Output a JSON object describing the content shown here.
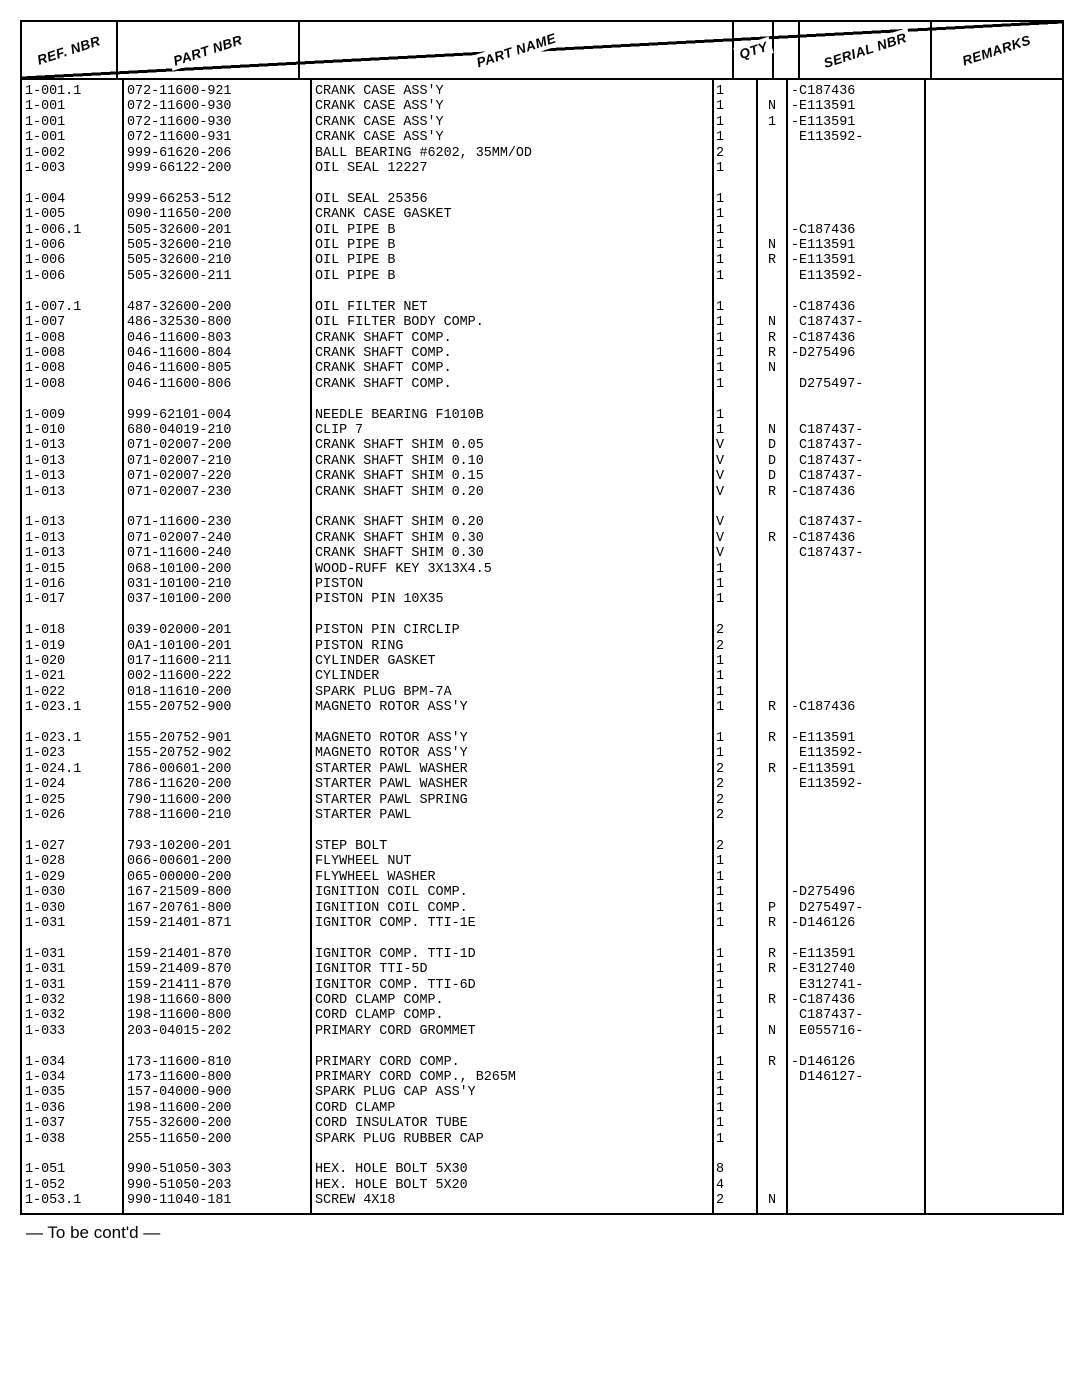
{
  "headers": {
    "ref": "REF. NBR",
    "part": "PART NBR",
    "name": "PART NAME",
    "qty": "QTY",
    "c1": "",
    "serial": "SERIAL NBR",
    "remarks": "REMARKS"
  },
  "footer": "— To be cont'd —",
  "rows": [
    {
      "ref": "1-001.1",
      "part": "072-11600-921",
      "name": "CRANK CASE ASS'Y",
      "qty": "1",
      "c": "",
      "serial": "-C187436",
      "rem": ""
    },
    {
      "ref": "1-001",
      "part": "072-11600-930",
      "name": "CRANK CASE ASS'Y",
      "qty": "1",
      "c": "N",
      "serial": "-E113591",
      "rem": ""
    },
    {
      "ref": "1-001",
      "part": "072-11600-930",
      "name": "CRANK CASE ASS'Y",
      "qty": "1",
      "c": "1",
      "serial": "-E113591",
      "rem": ""
    },
    {
      "ref": "1-001",
      "part": "072-11600-931",
      "name": "CRANK CASE ASS'Y",
      "qty": "1",
      "c": "",
      "serial": " E113592-",
      "rem": ""
    },
    {
      "ref": "1-002",
      "part": "999-61620-206",
      "name": "BALL BEARING #6202, 35MM/OD",
      "qty": "2",
      "c": "",
      "serial": "",
      "rem": ""
    },
    {
      "ref": "1-003",
      "part": "999-66122-200",
      "name": "OIL SEAL 12227",
      "qty": "1",
      "c": "",
      "serial": "",
      "rem": ""
    },
    {
      "blank": true
    },
    {
      "ref": "1-004",
      "part": "999-66253-512",
      "name": "OIL SEAL 25356",
      "qty": "1",
      "c": "",
      "serial": "",
      "rem": ""
    },
    {
      "ref": "1-005",
      "part": "090-11650-200",
      "name": "CRANK CASE GASKET",
      "qty": "1",
      "c": "",
      "serial": "",
      "rem": ""
    },
    {
      "ref": "1-006.1",
      "part": "505-32600-201",
      "name": "OIL PIPE B",
      "qty": "1",
      "c": "",
      "serial": "-C187436",
      "rem": ""
    },
    {
      "ref": "1-006",
      "part": "505-32600-210",
      "name": "OIL PIPE B",
      "qty": "1",
      "c": "N",
      "serial": "-E113591",
      "rem": ""
    },
    {
      "ref": "1-006",
      "part": "505-32600-210",
      "name": "OIL PIPE B",
      "qty": "1",
      "c": "R",
      "serial": "-E113591",
      "rem": ""
    },
    {
      "ref": "1-006",
      "part": "505-32600-211",
      "name": "OIL PIPE B",
      "qty": "1",
      "c": "",
      "serial": " E113592-",
      "rem": ""
    },
    {
      "blank": true
    },
    {
      "ref": "1-007.1",
      "part": "487-32600-200",
      "name": "OIL FILTER NET",
      "qty": "1",
      "c": "",
      "serial": "-C187436",
      "rem": ""
    },
    {
      "ref": "1-007",
      "part": "486-32530-800",
      "name": "OIL FILTER BODY COMP.",
      "qty": "1",
      "c": "N",
      "serial": " C187437-",
      "rem": ""
    },
    {
      "ref": "1-008",
      "part": "046-11600-803",
      "name": "CRANK SHAFT COMP.",
      "qty": "1",
      "c": "R",
      "serial": "-C187436",
      "rem": ""
    },
    {
      "ref": "1-008",
      "part": "046-11600-804",
      "name": "CRANK SHAFT COMP.",
      "qty": "1",
      "c": "R",
      "serial": "-D275496",
      "rem": ""
    },
    {
      "ref": "1-008",
      "part": "046-11600-805",
      "name": "CRANK SHAFT COMP.",
      "qty": "1",
      "c": "N",
      "serial": "",
      "rem": ""
    },
    {
      "ref": "1-008",
      "part": "046-11600-806",
      "name": "CRANK SHAFT COMP.",
      "qty": "1",
      "c": "",
      "serial": " D275497-",
      "rem": ""
    },
    {
      "blank": true
    },
    {
      "ref": "1-009",
      "part": "999-62101-004",
      "name": "NEEDLE BEARING F1010B",
      "qty": "1",
      "c": "",
      "serial": "",
      "rem": ""
    },
    {
      "ref": "1-010",
      "part": "680-04019-210",
      "name": "CLIP 7",
      "qty": "1",
      "c": "N",
      "serial": " C187437-",
      "rem": ""
    },
    {
      "ref": "1-013",
      "part": "071-02007-200",
      "name": "CRANK SHAFT SHIM 0.05",
      "qty": "V",
      "c": "D",
      "serial": " C187437-",
      "rem": ""
    },
    {
      "ref": "1-013",
      "part": "071-02007-210",
      "name": "CRANK SHAFT SHIM 0.10",
      "qty": "V",
      "c": "D",
      "serial": " C187437-",
      "rem": ""
    },
    {
      "ref": "1-013",
      "part": "071-02007-220",
      "name": "CRANK SHAFT SHIM 0.15",
      "qty": "V",
      "c": "D",
      "serial": " C187437-",
      "rem": ""
    },
    {
      "ref": "1-013",
      "part": "071-02007-230",
      "name": "CRANK SHAFT SHIM 0.20",
      "qty": "V",
      "c": "R",
      "serial": "-C187436",
      "rem": ""
    },
    {
      "blank": true
    },
    {
      "ref": "1-013",
      "part": "071-11600-230",
      "name": "CRANK SHAFT SHIM 0.20",
      "qty": "V",
      "c": "",
      "serial": " C187437-",
      "rem": ""
    },
    {
      "ref": "1-013",
      "part": "071-02007-240",
      "name": "CRANK SHAFT SHIM 0.30",
      "qty": "V",
      "c": "R",
      "serial": "-C187436",
      "rem": ""
    },
    {
      "ref": "1-013",
      "part": "071-11600-240",
      "name": "CRANK SHAFT SHIM 0.30",
      "qty": "V",
      "c": "",
      "serial": " C187437-",
      "rem": ""
    },
    {
      "ref": "1-015",
      "part": "068-10100-200",
      "name": "WOOD-RUFF KEY 3X13X4.5",
      "qty": "1",
      "c": "",
      "serial": "",
      "rem": ""
    },
    {
      "ref": "1-016",
      "part": "031-10100-210",
      "name": "PISTON",
      "qty": "1",
      "c": "",
      "serial": "",
      "rem": ""
    },
    {
      "ref": "1-017",
      "part": "037-10100-200",
      "name": "PISTON PIN 10X35",
      "qty": "1",
      "c": "",
      "serial": "",
      "rem": ""
    },
    {
      "blank": true
    },
    {
      "ref": "1-018",
      "part": "039-02000-201",
      "name": "PISTON PIN CIRCLIP",
      "qty": "2",
      "c": "",
      "serial": "",
      "rem": ""
    },
    {
      "ref": "1-019",
      "part": "0A1-10100-201",
      "name": "PISTON RING",
      "qty": "2",
      "c": "",
      "serial": "",
      "rem": ""
    },
    {
      "ref": "1-020",
      "part": "017-11600-211",
      "name": "CYLINDER GASKET",
      "qty": "1",
      "c": "",
      "serial": "",
      "rem": ""
    },
    {
      "ref": "1-021",
      "part": "002-11600-222",
      "name": "CYLINDER",
      "qty": "1",
      "c": "",
      "serial": "",
      "rem": ""
    },
    {
      "ref": "1-022",
      "part": "018-11610-200",
      "name": "SPARK PLUG BPM-7A",
      "qty": "1",
      "c": "",
      "serial": "",
      "rem": ""
    },
    {
      "ref": "1-023.1",
      "part": "155-20752-900",
      "name": "MAGNETO ROTOR ASS'Y",
      "qty": "1",
      "c": "R",
      "serial": "-C187436",
      "rem": ""
    },
    {
      "blank": true
    },
    {
      "ref": "1-023.1",
      "part": "155-20752-901",
      "name": "MAGNETO ROTOR ASS'Y",
      "qty": "1",
      "c": "R",
      "serial": "-E113591",
      "rem": ""
    },
    {
      "ref": "1-023",
      "part": "155-20752-902",
      "name": "MAGNETO ROTOR ASS'Y",
      "qty": "1",
      "c": "",
      "serial": " E113592-",
      "rem": ""
    },
    {
      "ref": "1-024.1",
      "part": "786-00601-200",
      "name": "STARTER PAWL WASHER",
      "qty": "2",
      "c": "R",
      "serial": "-E113591",
      "rem": ""
    },
    {
      "ref": "1-024",
      "part": "786-11620-200",
      "name": "STARTER PAWL WASHER",
      "qty": "2",
      "c": "",
      "serial": " E113592-",
      "rem": ""
    },
    {
      "ref": "1-025",
      "part": "790-11600-200",
      "name": "STARTER PAWL SPRING",
      "qty": "2",
      "c": "",
      "serial": "",
      "rem": ""
    },
    {
      "ref": "1-026",
      "part": "788-11600-210",
      "name": "STARTER PAWL",
      "qty": "2",
      "c": "",
      "serial": "",
      "rem": ""
    },
    {
      "blank": true
    },
    {
      "ref": "1-027",
      "part": "793-10200-201",
      "name": "STEP BOLT",
      "qty": "2",
      "c": "",
      "serial": "",
      "rem": ""
    },
    {
      "ref": "1-028",
      "part": "066-00601-200",
      "name": "FLYWHEEL NUT",
      "qty": "1",
      "c": "",
      "serial": "",
      "rem": ""
    },
    {
      "ref": "1-029",
      "part": "065-00000-200",
      "name": "FLYWHEEL WASHER",
      "qty": "1",
      "c": "",
      "serial": "",
      "rem": ""
    },
    {
      "ref": "1-030",
      "part": "167-21509-800",
      "name": "IGNITION COIL COMP.",
      "qty": "1",
      "c": "",
      "serial": "-D275496",
      "rem": ""
    },
    {
      "ref": "1-030",
      "part": "167-20761-800",
      "name": "IGNITION COIL COMP.",
      "qty": "1",
      "c": "P",
      "serial": " D275497-",
      "rem": ""
    },
    {
      "ref": "1-031",
      "part": "159-21401-871",
      "name": "IGNITOR COMP. TTI-1E",
      "qty": "1",
      "c": "R",
      "serial": "-D146126",
      "rem": ""
    },
    {
      "blank": true
    },
    {
      "ref": "1-031",
      "part": "159-21401-870",
      "name": "IGNITOR COMP. TTI-1D",
      "qty": "1",
      "c": "R",
      "serial": "-E113591",
      "rem": ""
    },
    {
      "ref": "1-031",
      "part": "159-21409-870",
      "name": "IGNITOR TTI-5D",
      "qty": "1",
      "c": "R",
      "serial": "-E312740",
      "rem": ""
    },
    {
      "ref": "1-031",
      "part": "159-21411-870",
      "name": "IGNITOR COMP. TTI-6D",
      "qty": "1",
      "c": "",
      "serial": " E312741-",
      "rem": ""
    },
    {
      "ref": "1-032",
      "part": "198-11660-800",
      "name": "CORD CLAMP COMP.",
      "qty": "1",
      "c": "R",
      "serial": "-C187436",
      "rem": ""
    },
    {
      "ref": "1-032",
      "part": "198-11600-800",
      "name": "CORD CLAMP COMP.",
      "qty": "1",
      "c": "",
      "serial": " C187437-",
      "rem": ""
    },
    {
      "ref": "1-033",
      "part": "203-04015-202",
      "name": "PRIMARY CORD GROMMET",
      "qty": "1",
      "c": "N",
      "serial": " E055716-",
      "rem": ""
    },
    {
      "blank": true
    },
    {
      "ref": "1-034",
      "part": "173-11600-810",
      "name": "PRIMARY CORD COMP.",
      "qty": "1",
      "c": "R",
      "serial": "-D146126",
      "rem": ""
    },
    {
      "ref": "1-034",
      "part": "173-11600-800",
      "name": "PRIMARY CORD COMP., B265M",
      "qty": "1",
      "c": "",
      "serial": " D146127-",
      "rem": ""
    },
    {
      "ref": "1-035",
      "part": "157-04000-900",
      "name": "SPARK PLUG CAP ASS'Y",
      "qty": "1",
      "c": "",
      "serial": "",
      "rem": ""
    },
    {
      "ref": "1-036",
      "part": "198-11600-200",
      "name": "CORD CLAMP",
      "qty": "1",
      "c": "",
      "serial": "",
      "rem": ""
    },
    {
      "ref": "1-037",
      "part": "755-32600-200",
      "name": "CORD INSULATOR TUBE",
      "qty": "1",
      "c": "",
      "serial": "",
      "rem": ""
    },
    {
      "ref": "1-038",
      "part": "255-11650-200",
      "name": "SPARK PLUG RUBBER CAP",
      "qty": "1",
      "c": "",
      "serial": "",
      "rem": ""
    },
    {
      "blank": true
    },
    {
      "ref": "1-051",
      "part": "990-51050-303",
      "name": "HEX. HOLE BOLT 5X30",
      "qty": "8",
      "c": "",
      "serial": "",
      "rem": ""
    },
    {
      "ref": "1-052",
      "part": "990-51050-203",
      "name": "HEX. HOLE BOLT 5X20",
      "qty": "4",
      "c": "",
      "serial": "",
      "rem": ""
    },
    {
      "ref": "1-053.1",
      "part": "990-11040-181",
      "name": "SCREW 4X18",
      "qty": "2",
      "c": "N",
      "serial": "",
      "rem": ""
    }
  ]
}
